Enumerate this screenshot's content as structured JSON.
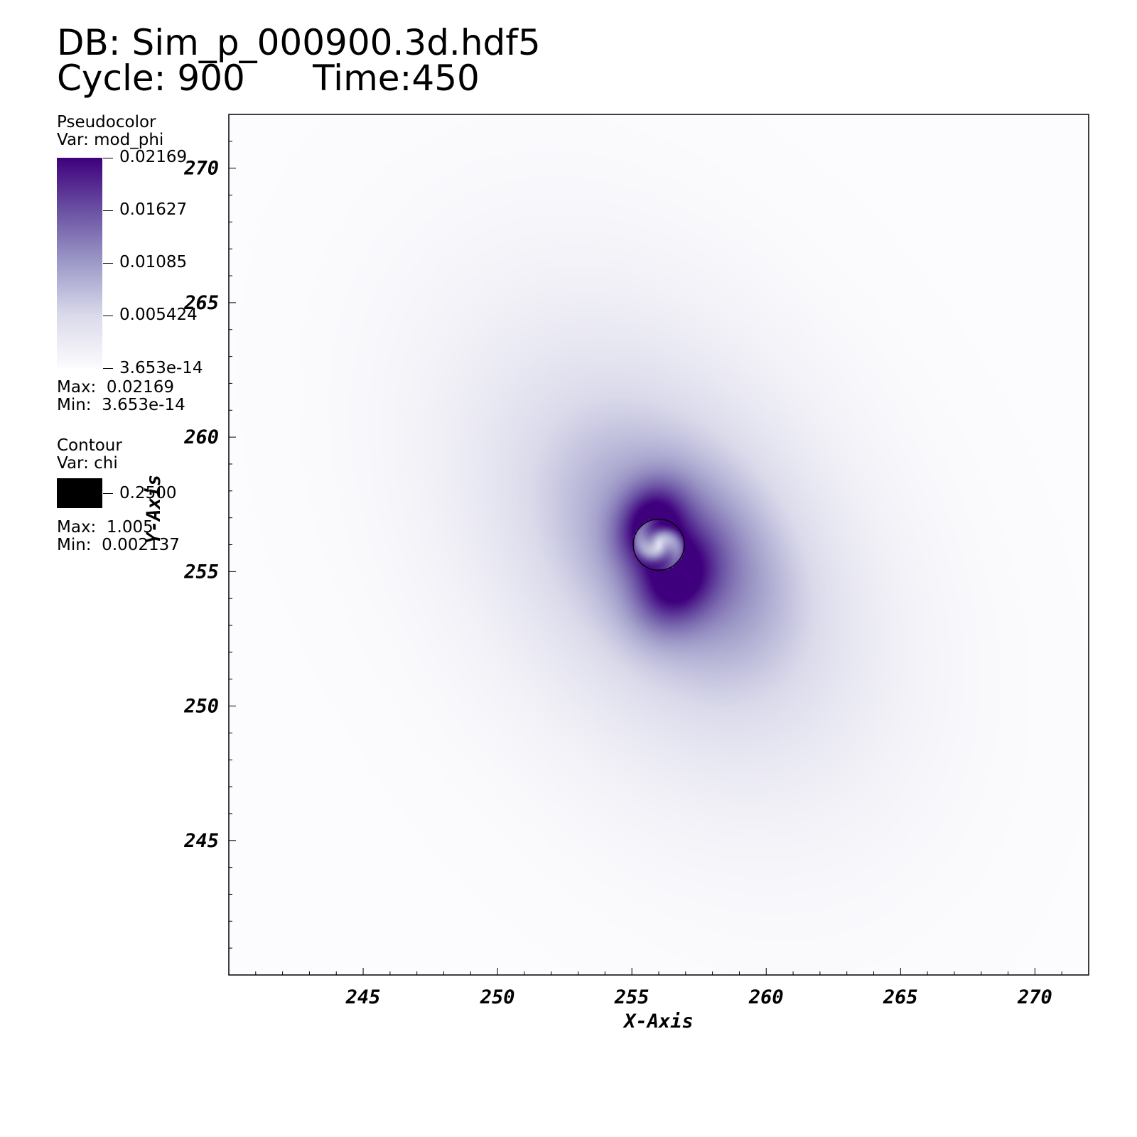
{
  "header": {
    "db_line": "DB: Sim_p_000900.3d.hdf5",
    "cycle_line": "Cycle: 900      Time:450"
  },
  "legend_pseudocolor": {
    "title": "Pseudocolor",
    "var": "Var: mod_phi",
    "ticks": [
      "0.02169",
      "0.01627",
      "0.01085",
      "0.005424",
      "3.653e-14"
    ],
    "max": "Max:  0.02169",
    "min": "Min:  3.653e-14",
    "colors": [
      "#3f007d",
      "#6a51a3",
      "#9e9ac8",
      "#dadaeb",
      "#fcfbfd"
    ]
  },
  "legend_contour": {
    "title": "Contour",
    "var": "Var: chi",
    "level": "0.2500",
    "max": "Max:  1.005",
    "min": "Min:  0.002137",
    "color": "#000000"
  },
  "chart_data": {
    "type": "heatmap",
    "xlabel": "X-Axis",
    "ylabel": "Y-Axis",
    "xlim": [
      240,
      272
    ],
    "ylim": [
      240,
      272
    ],
    "xticks": [
      245,
      250,
      255,
      260,
      265,
      270
    ],
    "yticks": [
      245,
      250,
      255,
      260,
      265,
      270
    ],
    "field": "mod_phi",
    "colormap": [
      "#fcfbfd",
      "#dadaeb",
      "#9e9ac8",
      "#6a51a3",
      "#3f007d"
    ],
    "value_range": [
      3.653e-14,
      0.02169
    ],
    "blobs": [
      {
        "x": 256.2,
        "y": 256.0,
        "sx": 5.5,
        "sy": 6.5,
        "rho": -0.35,
        "value": 0.005
      },
      {
        "x": 256.5,
        "y": 255.6,
        "sx": 3.6,
        "sy": 3.9,
        "rho": -0.4,
        "value": 0.006
      },
      {
        "x": 255.7,
        "y": 256.8,
        "sx": 0.85,
        "sy": 1.0,
        "rho": 0.2,
        "value": 0.012
      },
      {
        "x": 256.6,
        "y": 254.7,
        "sx": 1.0,
        "sy": 1.2,
        "rho": 0.2,
        "value": 0.012
      },
      {
        "x": 257.6,
        "y": 255.6,
        "sx": 2.0,
        "sy": 2.2,
        "rho": -0.3,
        "value": 0.004
      }
    ],
    "contour": {
      "var": "chi",
      "level": 0.25,
      "center": [
        256.0,
        256.0
      ],
      "radius": 0.95,
      "color": "#000000"
    }
  }
}
